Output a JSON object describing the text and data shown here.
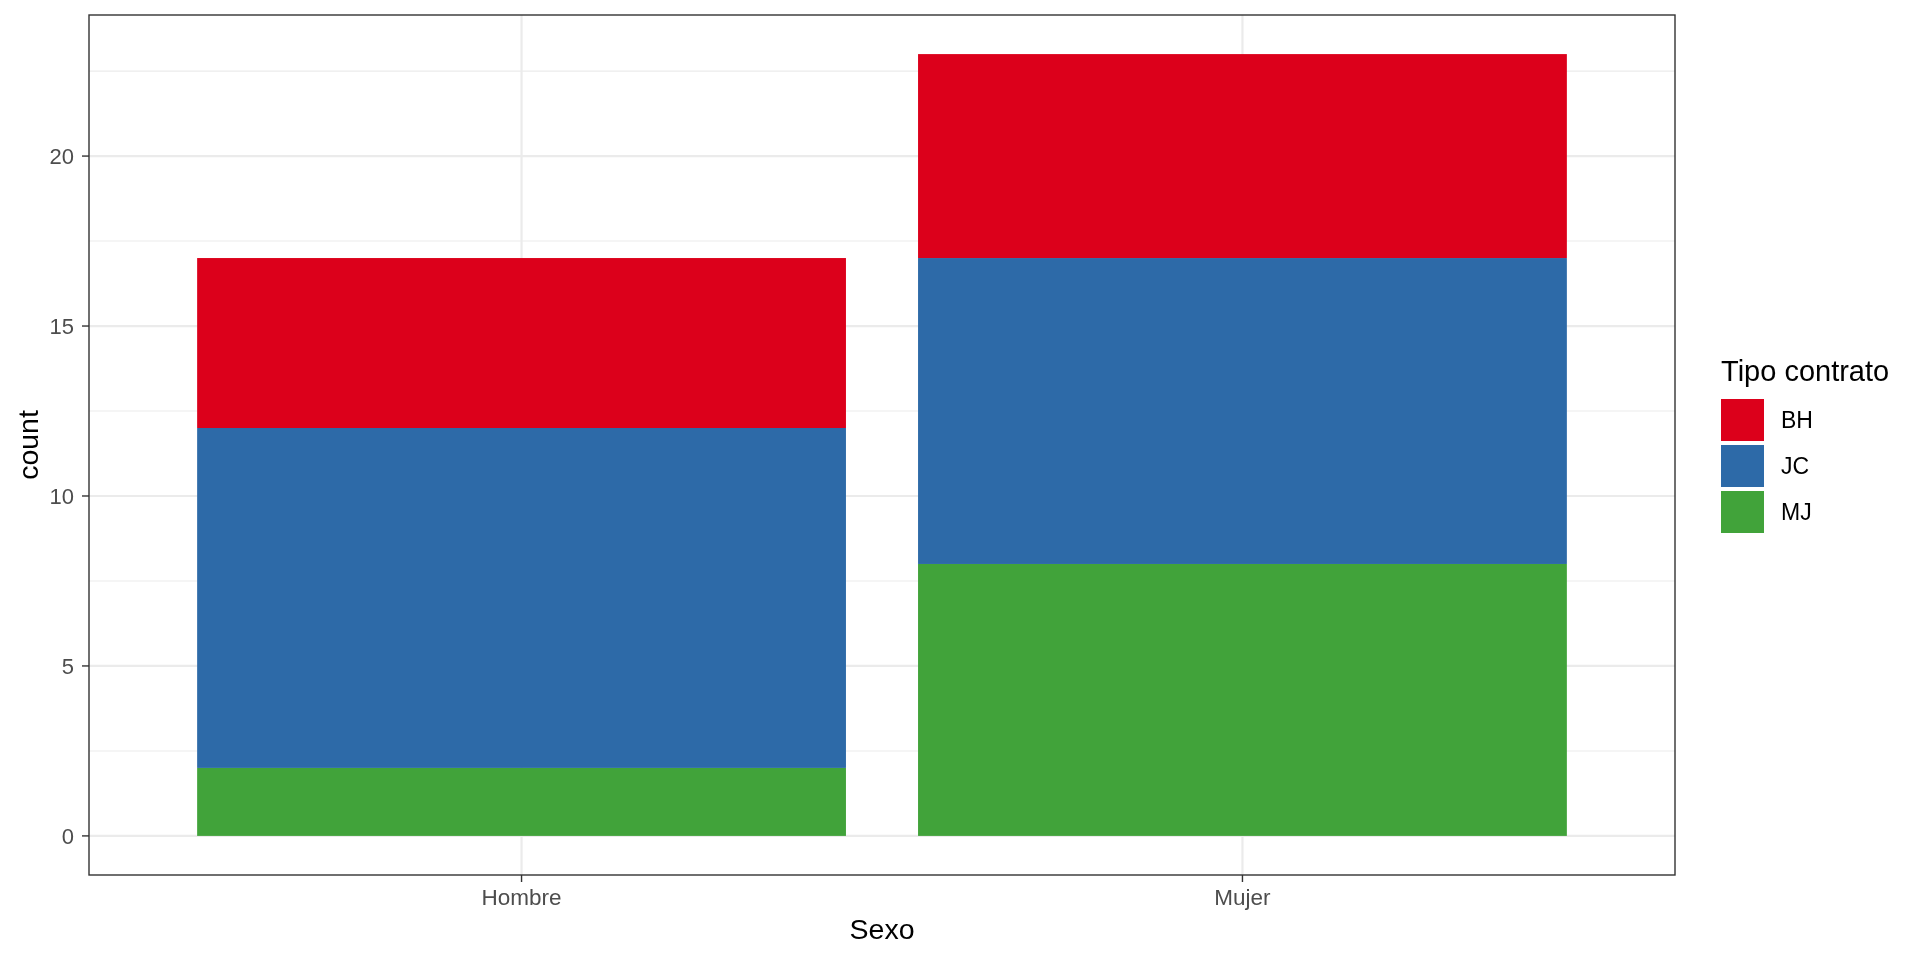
{
  "chart_data": {
    "type": "bar",
    "stacked": true,
    "xlabel": "Sexo",
    "ylabel": "count",
    "legend_title": "Tipo contrato",
    "categories": [
      "Hombre",
      "Mujer"
    ],
    "series": [
      {
        "name": "MJ",
        "color": "#41a33a",
        "values": [
          2,
          8
        ]
      },
      {
        "name": "JC",
        "color": "#2d6aa8",
        "values": [
          10,
          9
        ]
      },
      {
        "name": "BH",
        "color": "#dc001b",
        "values": [
          5,
          6
        ]
      }
    ],
    "ylim": [
      -1.15,
      24.15
    ],
    "yticks": [
      0,
      {
        "value": 2.5,
        "label": null
      },
      5,
      {
        "value": 7.5,
        "label": null
      },
      10,
      {
        "value": 12.5,
        "label": null
      },
      15,
      {
        "value": 17.5,
        "label": null
      },
      20,
      {
        "value": 22.5,
        "label": null
      }
    ],
    "grid": true,
    "legend": "right"
  }
}
